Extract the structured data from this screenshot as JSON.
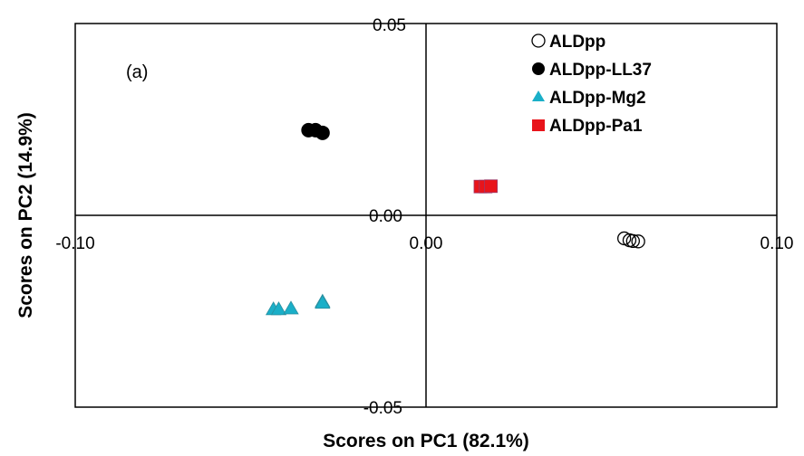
{
  "chart_data": {
    "type": "scatter",
    "title": "",
    "annotation": "(a)",
    "xlabel": "Scores on PC1 (82.1%)",
    "ylabel": "Scores on PC2 (14.9%)",
    "xlim": [
      -0.1,
      0.1
    ],
    "ylim": [
      -0.05,
      0.05
    ],
    "xticks": [
      -0.1,
      0.0,
      0.1
    ],
    "xtick_labels": [
      "-0.10",
      "0.00",
      "0.10"
    ],
    "yticks": [
      0.05,
      0.0,
      -0.05
    ],
    "ytick_labels": [
      "0.05",
      "0.00",
      "-0.05"
    ],
    "grid": false,
    "legend_position": "top-right",
    "series": [
      {
        "name": "ALDpp",
        "marker": "circle-open",
        "color": "#000000",
        "points": [
          [
            0.0565,
            -0.006
          ],
          [
            0.058,
            -0.0065
          ],
          [
            0.059,
            -0.0067
          ],
          [
            0.0605,
            -0.0068
          ]
        ]
      },
      {
        "name": "ALDpp-LL37",
        "marker": "circle-filled",
        "color": "#000000",
        "points": [
          [
            -0.0335,
            0.0222
          ],
          [
            -0.0315,
            0.0222
          ],
          [
            -0.0295,
            0.0215
          ]
        ]
      },
      {
        "name": "ALDpp-Mg2",
        "marker": "triangle",
        "color": "#1AAFC8",
        "points": [
          [
            -0.0435,
            -0.0245
          ],
          [
            -0.042,
            -0.0245
          ],
          [
            -0.0385,
            -0.0243
          ],
          [
            -0.0295,
            -0.0225
          ],
          [
            -0.0295,
            -0.0228
          ]
        ]
      },
      {
        "name": "ALDpp-Pa1",
        "marker": "square",
        "color": "#E8141B",
        "points": [
          [
            0.0155,
            0.0075
          ],
          [
            0.017,
            0.0075
          ],
          [
            0.0185,
            0.0076
          ]
        ]
      }
    ]
  }
}
